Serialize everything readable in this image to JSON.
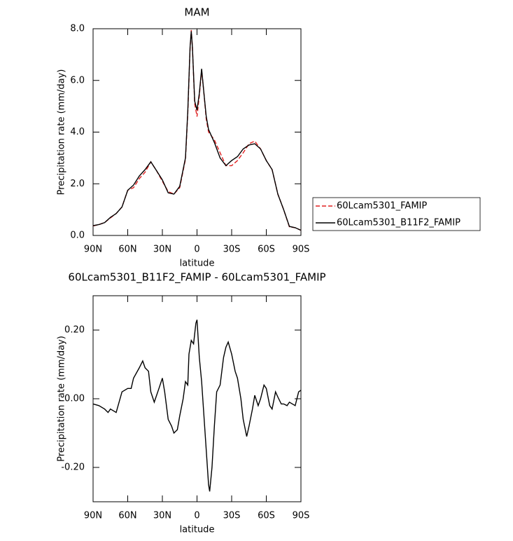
{
  "chart_data": [
    {
      "type": "line",
      "title": "MAM",
      "xlabel": "latitude",
      "ylabel": "Precipitation rate (mm/day)",
      "x": [
        90,
        85,
        80,
        75,
        70,
        65,
        60,
        55,
        50,
        45,
        40,
        35,
        30,
        25,
        20,
        15,
        10,
        8,
        6,
        5,
        4,
        2,
        0,
        -2,
        -4,
        -6,
        -8,
        -10,
        -15,
        -20,
        -25,
        -30,
        -35,
        -40,
        -45,
        -50,
        -55,
        -60,
        -65,
        -70,
        -75,
        -80,
        -85,
        -90
      ],
      "series": [
        {
          "name": "60Lcam5301_FAMIP",
          "color": "#e02020",
          "linestyle": "dashed",
          "values": [
            0.37,
            0.42,
            0.5,
            0.68,
            0.85,
            1.1,
            1.75,
            1.85,
            2.2,
            2.45,
            2.85,
            2.5,
            2.1,
            1.7,
            1.6,
            1.85,
            2.95,
            4.7,
            7.25,
            7.95,
            7.3,
            5.1,
            4.6,
            5.4,
            6.4,
            5.5,
            4.5,
            4.0,
            3.7,
            3.2,
            2.7,
            2.7,
            2.9,
            3.2,
            3.55,
            3.65,
            3.35,
            2.9,
            2.55,
            1.6,
            1.0,
            0.33,
            0.3,
            0.2
          ]
        },
        {
          "name": "60Lcam5301_B11F2_FAMIP",
          "color": "#000000",
          "linestyle": "solid",
          "values": [
            0.38,
            0.42,
            0.5,
            0.7,
            0.85,
            1.1,
            1.75,
            1.95,
            2.3,
            2.55,
            2.85,
            2.5,
            2.15,
            1.65,
            1.6,
            1.9,
            3.0,
            4.8,
            7.3,
            7.9,
            7.3,
            5.2,
            4.85,
            5.5,
            6.45,
            5.5,
            4.6,
            4.1,
            3.6,
            3.0,
            2.7,
            2.9,
            3.05,
            3.35,
            3.5,
            3.55,
            3.35,
            2.9,
            2.55,
            1.6,
            1.0,
            0.35,
            0.3,
            0.2
          ]
        }
      ],
      "xlim": [
        90,
        -90
      ],
      "xticks": [
        {
          "value": 90,
          "label": "90N"
        },
        {
          "value": 60,
          "label": "60N"
        },
        {
          "value": 30,
          "label": "30N"
        },
        0,
        {
          "value": -30,
          "label": "30S"
        },
        {
          "value": -60,
          "label": "60S"
        },
        {
          "value": -90,
          "label": "90S"
        }
      ],
      "ylim": [
        0,
        8
      ],
      "yticks": [
        {
          "value": 0,
          "label": "0.0"
        },
        {
          "value": 2,
          "label": "2.0"
        },
        {
          "value": 4,
          "label": "4.0"
        },
        {
          "value": 6,
          "label": "6.0"
        },
        {
          "value": 8,
          "label": "8.0"
        }
      ],
      "legend": "right"
    },
    {
      "type": "line",
      "title": "60Lcam5301_B11F2_FAMIP - 60Lcam5301_FAMIP",
      "xlabel": "latitude",
      "ylabel": "Precipitation rate (mm/day)",
      "x": [
        90,
        85,
        80,
        77,
        75,
        70,
        65,
        60,
        57,
        55,
        50,
        47,
        45,
        42,
        40,
        37,
        33,
        30,
        28,
        25,
        22,
        20,
        17,
        15,
        12,
        10,
        8,
        7,
        5,
        3,
        1,
        0,
        -2,
        -4,
        -6,
        -8,
        -10,
        -11,
        -13,
        -15,
        -17,
        -20,
        -23,
        -25,
        -27,
        -30,
        -33,
        -35,
        -38,
        -40,
        -43,
        -45,
        -48,
        -50,
        -53,
        -55,
        -58,
        -60,
        -63,
        -65,
        -68,
        -70,
        -73,
        -75,
        -78,
        -80,
        -85,
        -88,
        -90
      ],
      "color": "#000000",
      "values": [
        -0.015,
        -0.02,
        -0.03,
        -0.04,
        -0.03,
        -0.04,
        0.02,
        0.03,
        0.03,
        0.06,
        0.09,
        0.11,
        0.09,
        0.08,
        0.02,
        -0.01,
        0.03,
        0.06,
        0.02,
        -0.06,
        -0.08,
        -0.1,
        -0.09,
        -0.05,
        0.0,
        0.05,
        0.04,
        0.13,
        0.17,
        0.16,
        0.22,
        0.23,
        0.12,
        0.05,
        -0.05,
        -0.15,
        -0.25,
        -0.27,
        -0.2,
        -0.08,
        0.02,
        0.04,
        0.12,
        0.15,
        0.165,
        0.13,
        0.08,
        0.06,
        0.0,
        -0.06,
        -0.11,
        -0.08,
        -0.03,
        0.01,
        -0.02,
        0.0,
        0.04,
        0.03,
        -0.02,
        -0.03,
        0.02,
        0.005,
        -0.015,
        -0.015,
        -0.02,
        -0.01,
        -0.02,
        0.02,
        0.025
      ],
      "xlim": [
        90,
        -90
      ],
      "xticks": [
        {
          "value": 90,
          "label": "90N"
        },
        {
          "value": 60,
          "label": "60N"
        },
        {
          "value": 30,
          "label": "30N"
        },
        0,
        {
          "value": -30,
          "label": "30S"
        },
        {
          "value": -60,
          "label": "60S"
        },
        {
          "value": -90,
          "label": "90S"
        }
      ],
      "ylim": [
        -0.3,
        0.3
      ],
      "yticks": [
        {
          "value": -0.2,
          "label": "-0.20"
        },
        {
          "value": 0,
          "label": "0.00"
        },
        {
          "value": 0.2,
          "label": "0.20"
        }
      ]
    }
  ]
}
